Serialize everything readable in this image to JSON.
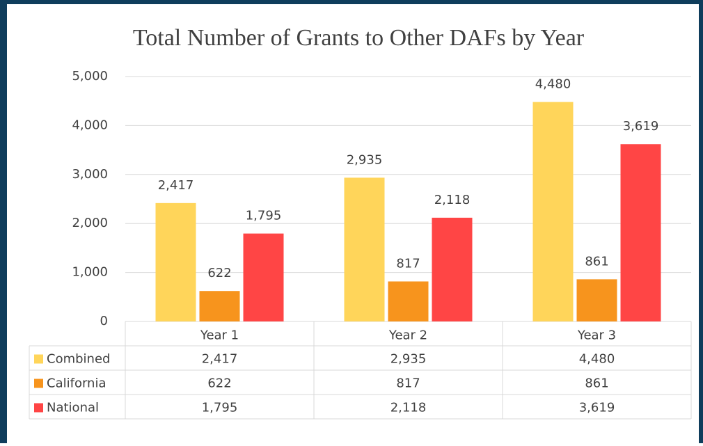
{
  "chart_data": {
    "type": "bar",
    "title": "Total Number of Grants to Other DAFs by Year",
    "categories": [
      "Year 1",
      "Year 2",
      "Year 3"
    ],
    "series": [
      {
        "name": "Combined",
        "color": "#ffd55a",
        "values": [
          2417,
          2935,
          4480
        ],
        "value_labels": [
          "2,417",
          "2,935",
          "4,480"
        ]
      },
      {
        "name": "California",
        "color": "#f7941d",
        "values": [
          622,
          817,
          861
        ],
        "value_labels": [
          "622",
          "817",
          "861"
        ]
      },
      {
        "name": "National",
        "color": "#ff4545",
        "values": [
          1795,
          2118,
          3619
        ],
        "value_labels": [
          "1,795",
          "2,118",
          "3,619"
        ]
      }
    ],
    "ylim": [
      0,
      5000
    ],
    "yticks": [
      0,
      {
        "value": 1000,
        "label": "1,000"
      },
      {
        "value": 2000,
        "label": "2,000"
      },
      {
        "value": 3000,
        "label": "3,000"
      },
      {
        "value": 4000,
        "label": "4,000"
      },
      {
        "value": 5000,
        "label": "5,000"
      }
    ],
    "grid": true
  }
}
